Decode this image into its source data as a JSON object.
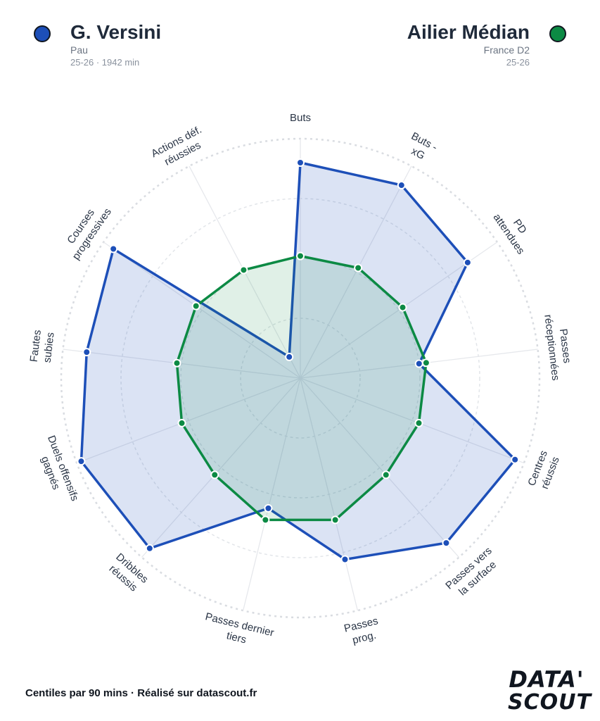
{
  "player": {
    "name": "G. Versini",
    "club": "Pau",
    "season_minutes": "25-26 · 1942 min",
    "color": "#1d4fb8"
  },
  "reference": {
    "name": "Ailier Médian",
    "league": "France D2",
    "season": "25-26",
    "color": "#0c8a44"
  },
  "footer": {
    "note": "Centiles par 90 mins · Réalisé sur datascout.fr"
  },
  "logo": {
    "line1": "DATA'",
    "line2": "SCOUT"
  },
  "chart_data": {
    "type": "radar",
    "scale": [
      0,
      100
    ],
    "rings": [
      25,
      50,
      75,
      100
    ],
    "axes": [
      [
        "Buts"
      ],
      [
        "Buts -",
        "xG"
      ],
      [
        "PD",
        "attendues"
      ],
      [
        "Passes",
        "réceptionnées"
      ],
      [
        "Centres",
        "réussis"
      ],
      [
        "Passes vers",
        "la surface"
      ],
      [
        "Passes",
        "prog."
      ],
      [
        "Passes dernier",
        "tiers"
      ],
      [
        "Dribbles",
        "réussis"
      ],
      [
        "Duels offensifs",
        "gagnés"
      ],
      [
        "Fautes",
        "subies"
      ],
      [
        "Courses",
        "progressives"
      ],
      [
        "Actions déf.",
        "réussies"
      ]
    ],
    "series": [
      {
        "name": "G. Versini",
        "color": "#1d4fb8",
        "values": [
          90,
          91,
          85,
          50,
          96,
          92,
          78,
          56,
          95,
          98,
          90,
          95,
          10
        ]
      },
      {
        "name": "Ailier Médian",
        "color": "#0c8a44",
        "values": [
          51,
          52,
          52,
          53,
          53,
          54,
          61,
          61,
          54,
          53,
          52,
          53,
          51
        ]
      }
    ]
  }
}
